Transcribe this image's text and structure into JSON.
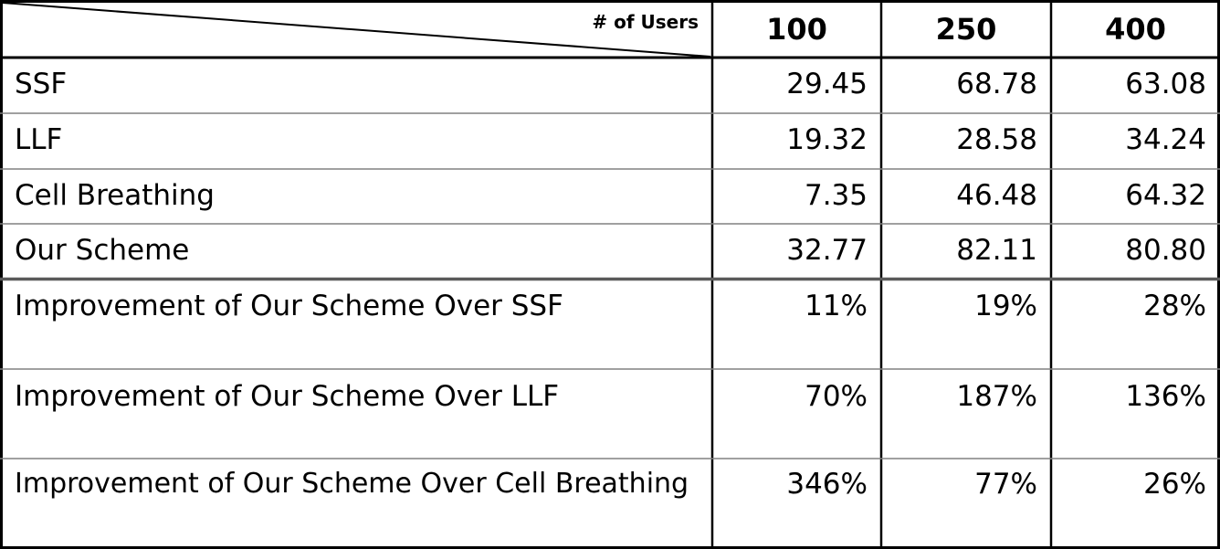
{
  "table": {
    "corner_label": "# of Users",
    "columns": [
      "100",
      "250",
      "400"
    ],
    "rows": [
      {
        "label": "SSF",
        "values": [
          "29.45",
          "68.78",
          "63.08"
        ]
      },
      {
        "label": "LLF",
        "values": [
          "19.32",
          "28.58",
          "34.24"
        ]
      },
      {
        "label": "Cell Breathing",
        "values": [
          "7.35",
          "46.48",
          "64.32"
        ]
      },
      {
        "label": "Our Scheme",
        "values": [
          "32.77",
          "82.11",
          "80.80"
        ]
      },
      {
        "label": "Improvement of Our Scheme Over SSF",
        "values": [
          "11%",
          "19%",
          "28%"
        ]
      },
      {
        "label": "Improvement of Our Scheme Over LLF",
        "values": [
          "70%",
          "187%",
          "136%"
        ]
      },
      {
        "label": "Improvement of Our Scheme Over Cell Breathing",
        "values": [
          "346%",
          "77%",
          "26%"
        ]
      }
    ]
  }
}
